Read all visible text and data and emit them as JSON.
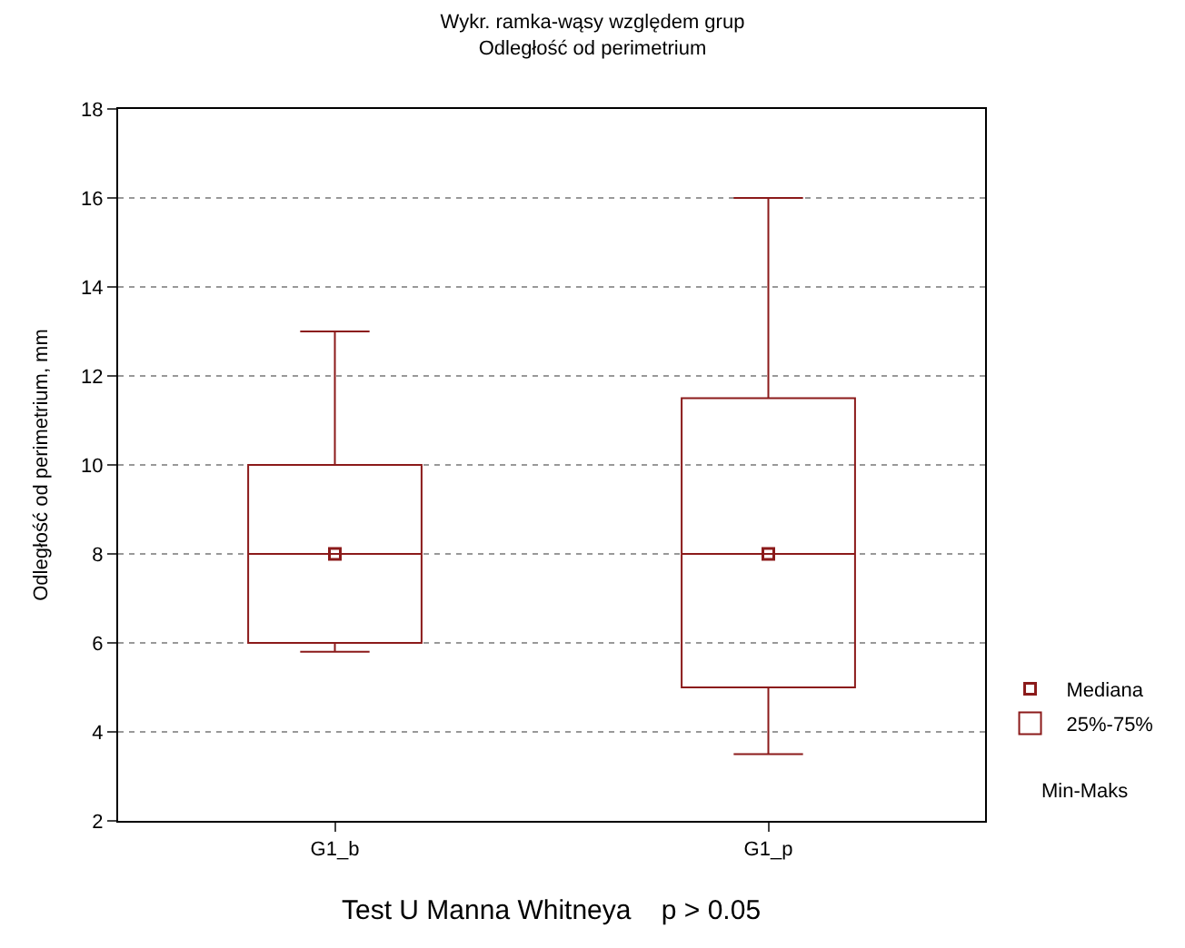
{
  "chart_data": {
    "type": "box",
    "title": "Wykr. ramka-wąsy względem grup",
    "subtitle": "Odległość od perimetrium",
    "ylabel": "Odległość od perimetrium, mm",
    "categories": [
      "G1_b",
      "G1_p"
    ],
    "series": [
      {
        "name": "Mediana",
        "type": "scatter",
        "marker": "square",
        "color": "#8b1a1a",
        "values": [
          8,
          8
        ]
      },
      {
        "name": "25%-75%",
        "type": "box",
        "color": "#8b1a1a",
        "boxes": [
          {
            "low": 5.8,
            "q1": 6,
            "median": 8,
            "q3": 10,
            "high": 13
          },
          {
            "low": 3.5,
            "q1": 5,
            "median": 8,
            "q3": 11.5,
            "high": 16
          }
        ]
      }
    ],
    "ylim": [
      2,
      18
    ],
    "yticks": [
      2,
      4,
      6,
      8,
      10,
      12,
      14,
      16,
      18
    ],
    "grid": "y",
    "legend": "bottom right",
    "annotations": [
      "Min-Maks",
      "Test U Manna Whitneya    p > 0.05"
    ]
  }
}
